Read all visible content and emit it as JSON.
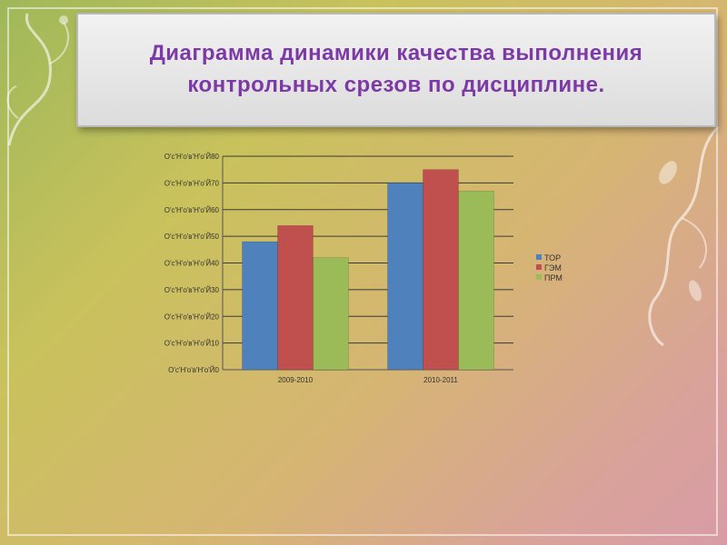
{
  "title": "Диаграмма динамики качества выполнения\nконтрольных срезов по дисциплине.",
  "colors": {
    "title": "#7d3aa6",
    "background_start": "#9fb85a",
    "background_end": "#d89ca6"
  },
  "chart_data": {
    "type": "bar",
    "categories": [
      "2009-2010",
      "2010-2011"
    ],
    "series": [
      {
        "name": "ТОР",
        "color": "#4f81bd",
        "values": [
          48,
          70
        ]
      },
      {
        "name": "ГЭМ",
        "color": "#c0504d",
        "values": [
          54,
          75
        ]
      },
      {
        "name": "ПРМ",
        "color": "#9bbb59",
        "values": [
          42,
          67
        ]
      }
    ],
    "y_ticks": [
      0,
      10,
      20,
      30,
      40,
      50,
      60,
      70,
      80
    ],
    "y_tick_labels": [
      "О'с'Н'о'в'Н'о'Й0",
      "О'с'Н'о'в'Н'о'Й10",
      "О'с'Н'о'в'Н'о'Й20",
      "О'с'Н'о'в'Н'о'Й30",
      "О'с'Н'о'в'Н'о'Й40",
      "О'с'Н'о'в'Н'о'Й50",
      "О'с'Н'о'в'Н'о'Й60",
      "О'с'Н'о'в'Н'о'Й70",
      "О'с'Н'о'в'Н'о'Й80"
    ],
    "ylim": [
      0,
      80
    ],
    "grid": true,
    "legend": "right",
    "xlabel": "",
    "ylabel": ""
  }
}
